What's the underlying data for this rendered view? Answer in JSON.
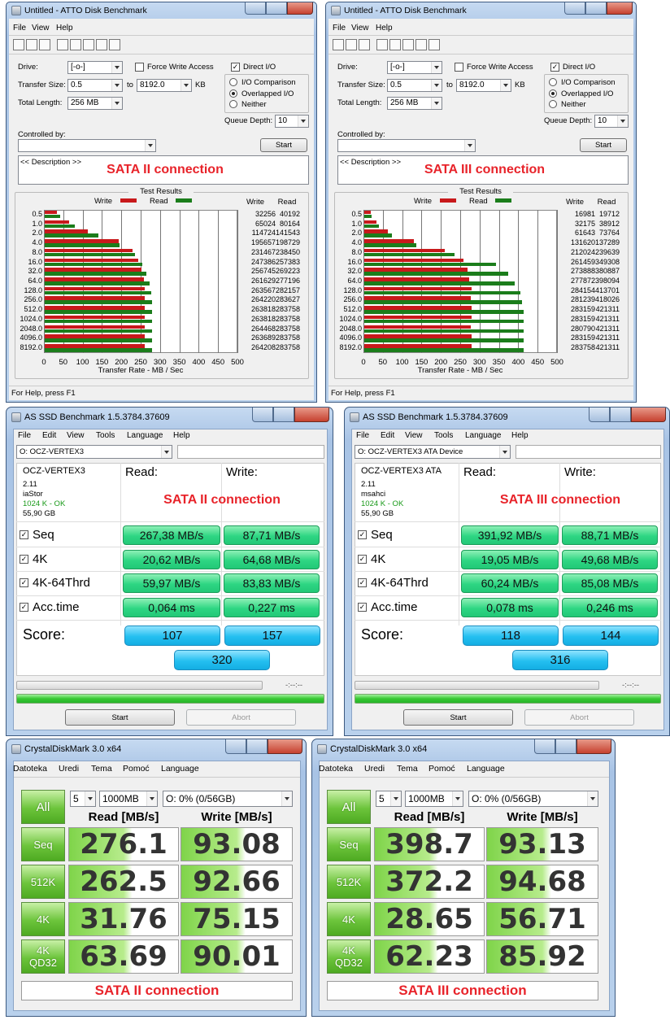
{
  "atto": [
    {
      "title": "Untitled - ATTO Disk Benchmark",
      "menu": [
        "File",
        "View",
        "Help"
      ],
      "labels": {
        "drive_label": "Drive:",
        "drive": "[-o-]",
        "force_write": "Force Write Access",
        "direct_io": "Direct I/O",
        "transfer_size_label": "Transfer Size:",
        "size_from": "0.5",
        "to": "to",
        "size_to": "8192.0",
        "kb": "KB",
        "io_comparison": "I/O Comparison",
        "overlapped": "Overlapped I/O",
        "neither": "Neither",
        "total_length_label": "Total Length:",
        "total_length": "256 MB",
        "queue_depth_label": "Queue Depth:",
        "queue_depth": 10,
        "controlled_by": "Controlled by:",
        "start": "Start",
        "description": "<< Description >>",
        "connection": "SATA II connection",
        "test_results": "Test Results",
        "status": "For Help, press F1"
      },
      "chart": {
        "type": "bar",
        "orientation": "horizontal",
        "categories": [
          "0.5",
          "1.0",
          "2.0",
          "4.0",
          "8.0",
          "16.0",
          "32.0",
          "64.0",
          "128.0",
          "256.0",
          "512.0",
          "1024.0",
          "2048.0",
          "4096.0",
          "8192.0"
        ],
        "series": [
          {
            "name": "Write",
            "color": "#c8191b",
            "values": [
              32256,
              65024,
              114724,
              195657,
              231467,
              247386,
              256745,
              261629,
              263567,
              264220,
              263818,
              263818,
              264468,
              263689,
              264208
            ]
          },
          {
            "name": "Read",
            "color": "#1b7d1b",
            "values": [
              40192,
              80164,
              141543,
              198729,
              238450,
              257383,
              269223,
              277196,
              282157,
              283627,
              283758,
              283758,
              283758,
              283758,
              283758
            ]
          }
        ],
        "xlim": [
          0,
          500
        ],
        "xticks": [
          0,
          50,
          100,
          150,
          200,
          250,
          300,
          350,
          400,
          450,
          500
        ],
        "x_label": "Transfer Rate - MB / Sec",
        "grid": true
      }
    },
    {
      "title": "Untitled - ATTO Disk Benchmark",
      "menu": [
        "File",
        "View",
        "Help"
      ],
      "labels": {
        "drive_label": "Drive:",
        "drive": "[-o-]",
        "force_write": "Force Write Access",
        "direct_io": "Direct I/O",
        "transfer_size_label": "Transfer Size:",
        "size_from": "0.5",
        "to": "to",
        "size_to": "8192.0",
        "kb": "KB",
        "io_comparison": "I/O Comparison",
        "overlapped": "Overlapped I/O",
        "neither": "Neither",
        "total_length_label": "Total Length:",
        "total_length": "256 MB",
        "queue_depth_label": "Queue Depth:",
        "queue_depth": 10,
        "controlled_by": "Controlled by:",
        "start": "Start",
        "description": "<< Description >>",
        "connection": "SATA III connection",
        "test_results": "Test Results",
        "status": "For Help, press F1"
      },
      "chart": {
        "type": "bar",
        "orientation": "horizontal",
        "categories": [
          "0.5",
          "1.0",
          "2.0",
          "4.0",
          "8.0",
          "16.0",
          "32.0",
          "64.0",
          "128.0",
          "256.0",
          "512.0",
          "1024.0",
          "2048.0",
          "4096.0",
          "8192.0"
        ],
        "series": [
          {
            "name": "Write",
            "color": "#c8191b",
            "values": [
              16981,
              32175,
              61643,
              131620,
              212024,
              261459,
              273888,
              277872,
              284154,
              281239,
              283159,
              283159,
              280790,
              283159,
              283758
            ]
          },
          {
            "name": "Read",
            "color": "#1b7d1b",
            "values": [
              19712,
              38912,
              73764,
              137289,
              239639,
              349308,
              380887,
              398094,
              413701,
              418026,
              421311,
              421311,
              421311,
              421311,
              421311
            ]
          }
        ],
        "xlim": [
          0,
          500
        ],
        "xticks": [
          0,
          50,
          100,
          150,
          200,
          250,
          300,
          350,
          400,
          450,
          500
        ],
        "x_label": "Transfer Rate - MB / Sec",
        "grid": true
      }
    }
  ],
  "asssd": [
    {
      "title": "AS SSD Benchmark 1.5.3784.37609",
      "menu": [
        "File",
        "Edit",
        "View",
        "Tools",
        "Language",
        "Help"
      ],
      "drive": "O: OCZ-VERTEX3",
      "info": [
        "OCZ-VERTEX3",
        "2.11",
        "iaStor",
        "1024 K - OK",
        "55,90 GB"
      ],
      "read_header": "Read:",
      "write_header": "Write:",
      "connection": "SATA II connection",
      "rows": [
        {
          "name": "Seq",
          "read": "267,38 MB/s",
          "write": "87,71 MB/s"
        },
        {
          "name": "4K",
          "read": "20,62 MB/s",
          "write": "64,68 MB/s"
        },
        {
          "name": "4K-64Thrd",
          "read": "59,97 MB/s",
          "write": "83,83 MB/s"
        },
        {
          "name": "Acc.time",
          "read": "0,064 ms",
          "write": "0,227 ms"
        }
      ],
      "score_label": "Score:",
      "score_read": 107,
      "score_write": 157,
      "score_total": 320,
      "time": "-:--:--",
      "start": "Start",
      "abort": "Abort"
    },
    {
      "title": "AS SSD Benchmark 1.5.3784.37609",
      "menu": [
        "File",
        "Edit",
        "View",
        "Tools",
        "Language",
        "Help"
      ],
      "drive": "O: OCZ-VERTEX3 ATA Device",
      "info": [
        "OCZ-VERTEX3 ATA",
        "2.11",
        "msahci",
        "1024 K - OK",
        "55,90 GB"
      ],
      "read_header": "Read:",
      "write_header": "Write:",
      "connection": "SATA III connection",
      "rows": [
        {
          "name": "Seq",
          "read": "391,92 MB/s",
          "write": "88,71 MB/s"
        },
        {
          "name": "4K",
          "read": "19,05 MB/s",
          "write": "49,68 MB/s"
        },
        {
          "name": "4K-64Thrd",
          "read": "60,24 MB/s",
          "write": "85,08 MB/s"
        },
        {
          "name": "Acc.time",
          "read": "0,078 ms",
          "write": "0,246 ms"
        }
      ],
      "score_label": "Score:",
      "score_read": 118,
      "score_write": 144,
      "score_total": 316,
      "time": "-:--:--",
      "start": "Start",
      "abort": "Abort"
    }
  ],
  "cdm": [
    {
      "title": "CrystalDiskMark 3.0 x64",
      "menu": [
        "Datoteka",
        "Uredi",
        "Tema",
        "Pomoć",
        "Language"
      ],
      "all": "All",
      "count": 5,
      "size": "1000MB",
      "drive": "O: 0% (0/56GB)",
      "read_header": "Read [MB/s]",
      "write_header": "Write [MB/s]",
      "rows": [
        {
          "label": [
            "Seq"
          ],
          "read": 276.1,
          "write": 93.08
        },
        {
          "label": [
            "512K"
          ],
          "read": 262.5,
          "write": 92.66
        },
        {
          "label": [
            "4K"
          ],
          "read": 31.76,
          "write": 75.15
        },
        {
          "label": [
            "4K",
            "QD32"
          ],
          "read": 63.69,
          "write": 90.01
        }
      ],
      "connection": "SATA II connection"
    },
    {
      "title": "CrystalDiskMark 3.0 x64",
      "menu": [
        "Datoteka",
        "Uredi",
        "Tema",
        "Pomoć",
        "Language"
      ],
      "all": "All",
      "count": 5,
      "size": "1000MB",
      "drive": "O: 0% (0/56GB)",
      "read_header": "Read [MB/s]",
      "write_header": "Write [MB/s]",
      "rows": [
        {
          "label": [
            "Seq"
          ],
          "read": 398.7,
          "write": 93.13
        },
        {
          "label": [
            "512K"
          ],
          "read": 372.2,
          "write": 94.68
        },
        {
          "label": [
            "4K"
          ],
          "read": 28.65,
          "write": 56.71
        },
        {
          "label": [
            "4K",
            "QD32"
          ],
          "read": 62.23,
          "write": 85.92
        }
      ],
      "connection": "SATA III connection"
    }
  ]
}
